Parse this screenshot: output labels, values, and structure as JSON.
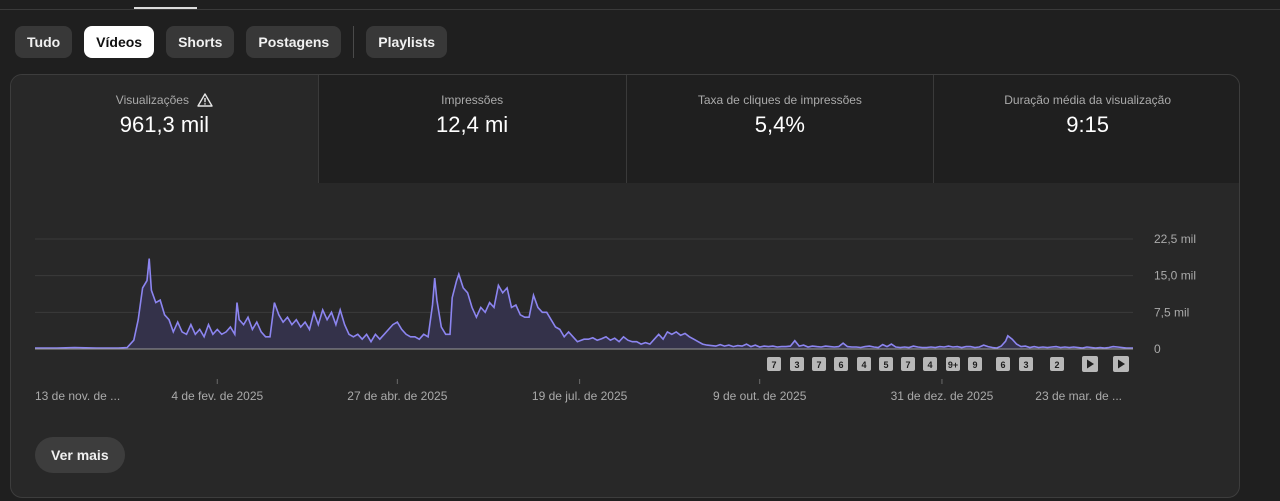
{
  "filters": [
    {
      "label": "Tudo",
      "active": false
    },
    {
      "label": "Vídeos",
      "active": true
    },
    {
      "label": "Shorts",
      "active": false
    },
    {
      "label": "Postagens",
      "active": false
    },
    {
      "label": "Playlists",
      "active": false
    }
  ],
  "metrics": [
    {
      "label": "Visualizações",
      "value": "961,3 mil",
      "warning_icon": "warning-triangle-icon",
      "active": true
    },
    {
      "label": "Impressões",
      "value": "12,4 mi"
    },
    {
      "label": "Taxa de cliques de impressões",
      "value": "5,4%"
    },
    {
      "label": "Duração média da visualização",
      "value": "9:15"
    }
  ],
  "see_more_label": "Ver mais",
  "colors": {
    "line": "#8c85f0",
    "fill": "#34324a",
    "active_chip_bg": "#ffffff",
    "chip_bg": "#383838"
  },
  "marker_labels": [
    "7",
    "3",
    "7",
    "6",
    "4",
    "5",
    "7",
    "4",
    "9+",
    "9",
    "6",
    "3",
    "2"
  ],
  "marker_play_icons": [
    "play-icon",
    "play-icon"
  ],
  "chart_data": {
    "type": "area",
    "y_tick_labels": [
      "22,5 mil",
      "15,0 mil",
      "7,5 mil",
      "0"
    ],
    "y_ticks": [
      22500,
      15000,
      7500,
      0
    ],
    "ylim": [
      0,
      22500
    ],
    "x_tick_labels": [
      "13 de nov. de ...",
      "4 de fev. de 2025",
      "27 de abr. de 2025",
      "19 de jul. de 2025",
      "9 de out. de 2025",
      "31 de dez. de 2025",
      "23 de mar. de ..."
    ],
    "x_range_days": [
      0,
      500
    ],
    "x_tick_days": [
      0,
      83,
      165,
      248,
      330,
      413,
      495
    ],
    "grid": true,
    "series": [
      {
        "points": [
          [
            0,
            200
          ],
          [
            10,
            200
          ],
          [
            18,
            300
          ],
          [
            28,
            180
          ],
          [
            38,
            200
          ],
          [
            42,
            300
          ],
          [
            45,
            1800
          ],
          [
            47,
            6000
          ],
          [
            49,
            12500
          ],
          [
            51,
            14000
          ],
          [
            52,
            18500
          ],
          [
            53,
            12000
          ],
          [
            55,
            9500
          ],
          [
            57,
            10000
          ],
          [
            59,
            7000
          ],
          [
            61,
            6000
          ],
          [
            63,
            3500
          ],
          [
            65,
            5500
          ],
          [
            67,
            3500
          ],
          [
            69,
            3000
          ],
          [
            71,
            5000
          ],
          [
            73,
            3000
          ],
          [
            75,
            4000
          ],
          [
            77,
            2500
          ],
          [
            79,
            5000
          ],
          [
            81,
            3000
          ],
          [
            83,
            4000
          ],
          [
            85,
            3000
          ],
          [
            87,
            3500
          ],
          [
            89,
            4500
          ],
          [
            91,
            3000
          ],
          [
            92,
            9500
          ],
          [
            93,
            6000
          ],
          [
            95,
            5000
          ],
          [
            97,
            6500
          ],
          [
            99,
            4000
          ],
          [
            101,
            5500
          ],
          [
            103,
            3500
          ],
          [
            105,
            2500
          ],
          [
            107,
            2500
          ],
          [
            109,
            9500
          ],
          [
            111,
            7000
          ],
          [
            113,
            5500
          ],
          [
            115,
            6500
          ],
          [
            117,
            5000
          ],
          [
            119,
            6000
          ],
          [
            121,
            4500
          ],
          [
            123,
            5500
          ],
          [
            125,
            4000
          ],
          [
            127,
            7500
          ],
          [
            129,
            5000
          ],
          [
            131,
            8000
          ],
          [
            133,
            6000
          ],
          [
            135,
            7500
          ],
          [
            137,
            5000
          ],
          [
            139,
            8000
          ],
          [
            141,
            5000
          ],
          [
            143,
            3000
          ],
          [
            145,
            2500
          ],
          [
            147,
            3000
          ],
          [
            149,
            2000
          ],
          [
            151,
            3000
          ],
          [
            153,
            1500
          ],
          [
            155,
            3000
          ],
          [
            157,
            2000
          ],
          [
            159,
            3000
          ],
          [
            161,
            4000
          ],
          [
            163,
            5000
          ],
          [
            165,
            5500
          ],
          [
            167,
            4000
          ],
          [
            169,
            3000
          ],
          [
            171,
            2500
          ],
          [
            173,
            2500
          ],
          [
            175,
            2000
          ],
          [
            177,
            3000
          ],
          [
            179,
            2500
          ],
          [
            181,
            9000
          ],
          [
            182,
            14500
          ],
          [
            183,
            10000
          ],
          [
            185,
            4500
          ],
          [
            187,
            3000
          ],
          [
            189,
            3000
          ],
          [
            190,
            10500
          ],
          [
            192,
            14000
          ],
          [
            193,
            15300
          ],
          [
            195,
            12500
          ],
          [
            197,
            11500
          ],
          [
            199,
            8500
          ],
          [
            201,
            6500
          ],
          [
            203,
            8500
          ],
          [
            205,
            7500
          ],
          [
            207,
            9500
          ],
          [
            209,
            8500
          ],
          [
            211,
            13000
          ],
          [
            213,
            11500
          ],
          [
            215,
            12500
          ],
          [
            217,
            8500
          ],
          [
            219,
            9000
          ],
          [
            221,
            7000
          ],
          [
            223,
            6500
          ],
          [
            225,
            6500
          ],
          [
            227,
            11000
          ],
          [
            229,
            8500
          ],
          [
            231,
            7500
          ],
          [
            233,
            7500
          ],
          [
            235,
            6000
          ],
          [
            237,
            4500
          ],
          [
            239,
            4000
          ],
          [
            241,
            2500
          ],
          [
            243,
            3500
          ],
          [
            245,
            2500
          ],
          [
            247,
            1500
          ],
          [
            250,
            2000
          ],
          [
            252,
            2000
          ],
          [
            254,
            2300
          ],
          [
            256,
            1800
          ],
          [
            258,
            2100
          ],
          [
            260,
            2500
          ],
          [
            262,
            1800
          ],
          [
            264,
            2200
          ],
          [
            266,
            1500
          ],
          [
            268,
            2500
          ],
          [
            270,
            1800
          ],
          [
            272,
            1500
          ],
          [
            274,
            1500
          ],
          [
            276,
            1000
          ],
          [
            278,
            1300
          ],
          [
            280,
            1000
          ],
          [
            282,
            2000
          ],
          [
            284,
            3000
          ],
          [
            286,
            2000
          ],
          [
            288,
            3500
          ],
          [
            290,
            3000
          ],
          [
            292,
            3500
          ],
          [
            294,
            2800
          ],
          [
            296,
            3200
          ],
          [
            298,
            2500
          ],
          [
            300,
            2000
          ],
          [
            302,
            1500
          ],
          [
            304,
            1000
          ],
          [
            306,
            800
          ],
          [
            308,
            700
          ],
          [
            310,
            600
          ],
          [
            312,
            900
          ],
          [
            314,
            600
          ],
          [
            316,
            800
          ],
          [
            318,
            500
          ],
          [
            320,
            700
          ],
          [
            322,
            600
          ],
          [
            324,
            1000
          ],
          [
            326,
            500
          ],
          [
            328,
            800
          ],
          [
            330,
            400
          ],
          [
            332,
            600
          ],
          [
            334,
            500
          ],
          [
            336,
            600
          ],
          [
            338,
            400
          ],
          [
            340,
            500
          ],
          [
            342,
            500
          ],
          [
            344,
            600
          ],
          [
            346,
            1700
          ],
          [
            348,
            600
          ],
          [
            350,
            800
          ],
          [
            352,
            400
          ],
          [
            354,
            600
          ],
          [
            356,
            500
          ],
          [
            358,
            400
          ],
          [
            360,
            600
          ],
          [
            362,
            500
          ],
          [
            364,
            400
          ],
          [
            366,
            500
          ],
          [
            368,
            1200
          ],
          [
            370,
            500
          ],
          [
            372,
            400
          ],
          [
            374,
            400
          ],
          [
            376,
            300
          ],
          [
            378,
            500
          ],
          [
            380,
            600
          ],
          [
            382,
            400
          ],
          [
            384,
            300
          ],
          [
            386,
            900
          ],
          [
            388,
            500
          ],
          [
            390,
            1000
          ],
          [
            392,
            400
          ],
          [
            394,
            300
          ],
          [
            396,
            400
          ],
          [
            398,
            300
          ],
          [
            400,
            600
          ],
          [
            402,
            400
          ],
          [
            404,
            300
          ],
          [
            406,
            300
          ],
          [
            408,
            400
          ],
          [
            410,
            300
          ],
          [
            412,
            500
          ],
          [
            414,
            400
          ],
          [
            416,
            600
          ],
          [
            418,
            400
          ],
          [
            420,
            500
          ],
          [
            422,
            300
          ],
          [
            424,
            500
          ],
          [
            426,
            500
          ],
          [
            428,
            300
          ],
          [
            430,
            400
          ],
          [
            432,
            800
          ],
          [
            434,
            500
          ],
          [
            436,
            300
          ],
          [
            438,
            200
          ],
          [
            440,
            600
          ],
          [
            442,
            1600
          ],
          [
            443,
            2700
          ],
          [
            445,
            2000
          ],
          [
            447,
            1000
          ],
          [
            449,
            500
          ],
          [
            451,
            600
          ],
          [
            453,
            300
          ],
          [
            455,
            500
          ],
          [
            457,
            300
          ],
          [
            459,
            400
          ],
          [
            461,
            300
          ],
          [
            463,
            400
          ],
          [
            465,
            500
          ],
          [
            467,
            300
          ],
          [
            469,
            400
          ],
          [
            471,
            300
          ],
          [
            473,
            400
          ],
          [
            475,
            300
          ],
          [
            477,
            200
          ],
          [
            479,
            400
          ],
          [
            481,
            300
          ],
          [
            483,
            200
          ],
          [
            485,
            300
          ],
          [
            487,
            200
          ],
          [
            489,
            300
          ],
          [
            491,
            500
          ],
          [
            493,
            400
          ],
          [
            495,
            300
          ],
          [
            497,
            200
          ],
          [
            499,
            200
          ],
          [
            500,
            200
          ]
        ]
      }
    ]
  }
}
